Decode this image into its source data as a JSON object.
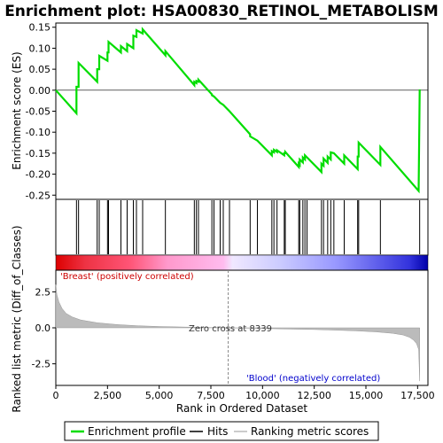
{
  "chart_data": {
    "type": "line",
    "title": "Enrichment plot: HSA00830_RETINOL_METABOLISM",
    "panels": {
      "enrichment": {
        "ylabel": "Enrichment score (ES)",
        "ylim": [
          -0.26,
          0.16
        ],
        "yticks": [
          "0.15",
          "0.10",
          "0.05",
          "0.00",
          "-0.05",
          "-0.10",
          "-0.15",
          "-0.20",
          "-0.25"
        ],
        "ytick_values": [
          0.15,
          0.1,
          0.05,
          0.0,
          -0.05,
          -0.1,
          -0.15,
          -0.2,
          -0.25
        ],
        "series_color": "#00dd00"
      },
      "ranked_metric": {
        "ylabel": "Ranked list metric (Diff_of_Classes)",
        "ylim": [
          -4.0,
          4.0
        ],
        "yticks": [
          "2.5",
          "0.0",
          "-2.5"
        ],
        "ytick_values": [
          2.5,
          0.0,
          -2.5
        ],
        "zero_cross_label": "Zero cross at 8339",
        "positive_label": "'Breast' (positively correlated)",
        "negative_label": "'Blood' (negatively correlated)",
        "positive_color": "#cc0000",
        "negative_color": "#0000cc"
      }
    },
    "xlabel": "Rank in Ordered Dataset",
    "xlim": [
      0,
      18000
    ],
    "xticks": [
      "0",
      "2,500",
      "5,000",
      "7,500",
      "10,000",
      "12,500",
      "15,000",
      "17,500"
    ],
    "xtick_values": [
      0,
      2500,
      5000,
      7500,
      10000,
      12500,
      15000,
      17500
    ],
    "zero_cross": 8339,
    "n_genes": 17600,
    "hits": [
      1000,
      1100,
      2000,
      2100,
      2500,
      2550,
      3150,
      3450,
      3750,
      3900,
      4200,
      5300,
      6700,
      6800,
      6900,
      7550,
      7650,
      7950,
      8100,
      8400,
      9400,
      9750,
      10450,
      10550,
      10700,
      11050,
      11100,
      11750,
      11800,
      11950,
      12050,
      12150,
      12850,
      12950,
      13150,
      13300,
      13450,
      13950,
      14600,
      14650,
      15700,
      17600
    ],
    "es_curve": [
      [
        0,
        0.0
      ],
      [
        1000,
        -0.055
      ],
      [
        1000,
        0.008
      ],
      [
        1100,
        0.008
      ],
      [
        1100,
        0.065
      ],
      [
        2000,
        0.02
      ],
      [
        2000,
        0.05
      ],
      [
        2100,
        0.05
      ],
      [
        2100,
        0.082
      ],
      [
        2500,
        0.07
      ],
      [
        2500,
        0.09
      ],
      [
        2550,
        0.09
      ],
      [
        2550,
        0.115
      ],
      [
        3150,
        0.09
      ],
      [
        3150,
        0.105
      ],
      [
        3450,
        0.093
      ],
      [
        3450,
        0.11
      ],
      [
        3750,
        0.1
      ],
      [
        3750,
        0.13
      ],
      [
        3900,
        0.127
      ],
      [
        3900,
        0.143
      ],
      [
        4200,
        0.135
      ],
      [
        4200,
        0.145
      ],
      [
        5300,
        0.083
      ],
      [
        5300,
        0.093
      ],
      [
        6700,
        0.012
      ],
      [
        6700,
        0.02
      ],
      [
        6800,
        0.017
      ],
      [
        6800,
        0.022
      ],
      [
        6900,
        0.02
      ],
      [
        6900,
        0.025
      ],
      [
        7550,
        -0.01
      ],
      [
        7550,
        -0.012
      ],
      [
        7650,
        -0.015
      ],
      [
        7950,
        -0.03
      ],
      [
        8100,
        -0.035
      ],
      [
        8400,
        -0.05
      ],
      [
        9400,
        -0.105
      ],
      [
        9400,
        -0.11
      ],
      [
        9750,
        -0.12
      ],
      [
        10450,
        -0.155
      ],
      [
        10450,
        -0.145
      ],
      [
        10550,
        -0.148
      ],
      [
        10550,
        -0.142
      ],
      [
        10700,
        -0.147
      ],
      [
        10700,
        -0.143
      ],
      [
        11050,
        -0.155
      ],
      [
        11050,
        -0.15
      ],
      [
        11100,
        -0.15
      ],
      [
        11100,
        -0.147
      ],
      [
        11750,
        -0.183
      ],
      [
        11750,
        -0.175
      ],
      [
        11800,
        -0.178
      ],
      [
        11800,
        -0.165
      ],
      [
        11950,
        -0.172
      ],
      [
        11950,
        -0.16
      ],
      [
        12050,
        -0.165
      ],
      [
        12050,
        -0.155
      ],
      [
        12150,
        -0.16
      ],
      [
        12850,
        -0.195
      ],
      [
        12850,
        -0.175
      ],
      [
        12950,
        -0.18
      ],
      [
        12950,
        -0.163
      ],
      [
        13150,
        -0.173
      ],
      [
        13150,
        -0.158
      ],
      [
        13300,
        -0.165
      ],
      [
        13300,
        -0.148
      ],
      [
        13450,
        -0.15
      ],
      [
        13950,
        -0.175
      ],
      [
        13950,
        -0.155
      ],
      [
        14600,
        -0.188
      ],
      [
        14600,
        -0.158
      ],
      [
        14650,
        -0.158
      ],
      [
        14650,
        -0.125
      ],
      [
        15700,
        -0.178
      ],
      [
        15700,
        -0.135
      ],
      [
        17550,
        -0.24
      ],
      [
        17600,
        0.002
      ]
    ],
    "metric_curve": [
      [
        0,
        3.0
      ],
      [
        50,
        2.3
      ],
      [
        150,
        1.8
      ],
      [
        300,
        1.35
      ],
      [
        500,
        1.0
      ],
      [
        800,
        0.75
      ],
      [
        1200,
        0.55
      ],
      [
        2000,
        0.35
      ],
      [
        3000,
        0.22
      ],
      [
        4000,
        0.14
      ],
      [
        5000,
        0.09
      ],
      [
        6000,
        0.06
      ],
      [
        7000,
        0.03
      ],
      [
        8339,
        0.0
      ],
      [
        9500,
        -0.03
      ],
      [
        10500,
        -0.06
      ],
      [
        11500,
        -0.09
      ],
      [
        12500,
        -0.12
      ],
      [
        13500,
        -0.16
      ],
      [
        14500,
        -0.21
      ],
      [
        15500,
        -0.28
      ],
      [
        16300,
        -0.38
      ],
      [
        16800,
        -0.5
      ],
      [
        17100,
        -0.65
      ],
      [
        17300,
        -0.85
      ],
      [
        17450,
        -1.1
      ],
      [
        17550,
        -1.5
      ],
      [
        17600,
        -3.7
      ]
    ]
  },
  "legend": {
    "items": [
      {
        "label": "Enrichment profile",
        "color": "#00dd00"
      },
      {
        "label": "Hits",
        "color": "#000000"
      },
      {
        "label": "Ranking metric scores",
        "color": "#bbbbbb"
      }
    ]
  }
}
